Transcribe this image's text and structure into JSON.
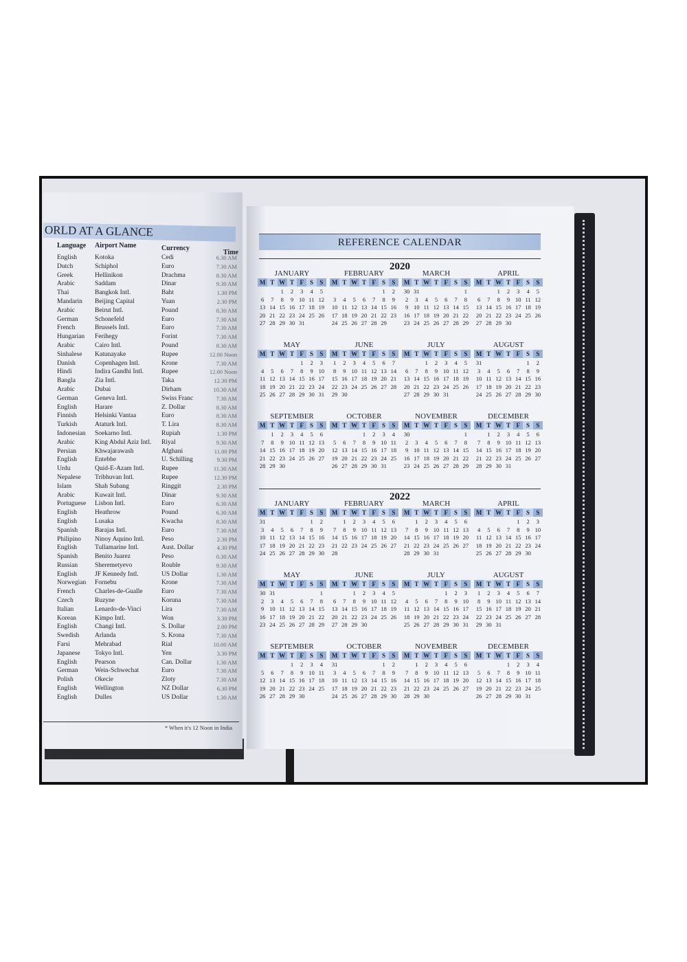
{
  "left_page": {
    "title": "ORLD AT A GLANCE",
    "headers": [
      "Language",
      "Airport Name",
      "Currency",
      "Time"
    ],
    "rows": [
      [
        "English",
        "Kotoka",
        "Cedi",
        "6.30 AM"
      ],
      [
        "Dutch",
        "Schiphol",
        "Euro",
        "7.30 AM"
      ],
      [
        "Greek",
        "Hellinikon",
        "Drachma",
        "8.30 AM"
      ],
      [
        "Arabic",
        "Saddam",
        "Dinar",
        "9.30 AM"
      ],
      [
        "Thai",
        "Bangkok Intl.",
        "Baht",
        "1.30 PM"
      ],
      [
        "Mandarin",
        "Beijing Capital",
        "Yuan",
        "2.30 PM"
      ],
      [
        "Arabic",
        "Beirut Intl.",
        "Pound",
        "8.30 AM"
      ],
      [
        "German",
        "Schonefeld",
        "Euro",
        "7.30 AM"
      ],
      [
        "French",
        "Brussels Intl.",
        "Euro",
        "7.30 AM"
      ],
      [
        "Hungarian",
        "Ferihegy",
        "Forint",
        "7.30 AM"
      ],
      [
        "Arabic",
        "Cairo Intl.",
        "Pound",
        "8.30 AM"
      ],
      [
        "Sinhalese",
        "Katunayake",
        "Rupee",
        "12.00 Noon"
      ],
      [
        "Danish",
        "Copenhagen Intl.",
        "Krone",
        "7.30 AM"
      ],
      [
        "Hindi",
        "Indira Gandhi Intl.",
        "Rupee",
        "12.00 Noon"
      ],
      [
        "Bangla",
        "Zia Intl.",
        "Taka",
        "12.30 PM"
      ],
      [
        "Arabic",
        "Dubai",
        "Dirham",
        "10.30 AM"
      ],
      [
        "German",
        "Geneva Intl.",
        "Swiss Franc",
        "7.30 AM"
      ],
      [
        "English",
        "Harare",
        "Z. Dollar",
        "8.30 AM"
      ],
      [
        "Finnish",
        "Helsinki Vantaa",
        "Euro",
        "8.30 AM"
      ],
      [
        "Turkish",
        "Ataturk Intl.",
        "T. Lira",
        "8.30 AM"
      ],
      [
        "Indonesian",
        "Soekarno Intl.",
        "Rupiah",
        "1.30 PM"
      ],
      [
        "Arabic",
        "King Abdul Aziz Intl.",
        "Riyal",
        "9.30 AM"
      ],
      [
        "Persian",
        "Khwajarawash",
        "Afghani",
        "11.00 PM"
      ],
      [
        "English",
        "Entebbe",
        "U. Schilling",
        "9.30 PM"
      ],
      [
        "Urdu",
        "Quid-E-Azam Intl.",
        "Rupee",
        "11.30 AM"
      ],
      [
        "Nepalese",
        "Tribhuvan Intl.",
        "Rupee",
        "12.30 PM"
      ],
      [
        "Islam",
        "Shah Subang",
        "Ringgit",
        "2.30 PM"
      ],
      [
        "Arabic",
        "Kuwait Intl.",
        "Dinar",
        "9.30 AM"
      ],
      [
        "Portuguese",
        "Lisbon Intl.",
        "Euro",
        "6.30 AM"
      ],
      [
        "English",
        "Heathrow",
        "Pound",
        "6.30 AM"
      ],
      [
        "English",
        "Lusaka",
        "Kwacha",
        "8.30 AM"
      ],
      [
        "Spanish",
        "Barajas Intl.",
        "Euro",
        "7.30 AM"
      ],
      [
        "Philipino",
        "Ninoy Aquino Intl.",
        "Peso",
        "2.30 PM"
      ],
      [
        "English",
        "Tullamarine Intl.",
        "Aust. Dollar",
        "4.30 PM"
      ],
      [
        "Spanish",
        "Benito Juarez",
        "Peso",
        "0.30 AM"
      ],
      [
        "Russian",
        "Sheremetyevo",
        "Rouble",
        "9.30 AM"
      ],
      [
        "English",
        "JF Kennedy Intl.",
        "US Dollar",
        "1.30 AM"
      ],
      [
        "Norwegian",
        "Fornebu",
        "Krone",
        "7.30 AM"
      ],
      [
        "French",
        "Charles-de-Gualle",
        "Euro",
        "7.30 AM"
      ],
      [
        "Czech",
        "Ruzyne",
        "Koruna",
        "7.30 AM"
      ],
      [
        "Italian",
        "Lenardo-de-Vinci",
        "Lira",
        "7.30 AM"
      ],
      [
        "Korean",
        "Kimpo Intl.",
        "Won",
        "3.30 PM"
      ],
      [
        "English",
        "Changi Intl.",
        "S. Dollar",
        "2.00 PM"
      ],
      [
        "Swedish",
        "Arlanda",
        "S. Krona",
        "7.30 AM"
      ],
      [
        "Farsi",
        "Mehrabad",
        "Rial",
        "10.00 AM"
      ],
      [
        "Japanese",
        "Tokyo Intl.",
        "Yen",
        "3.30 PM"
      ],
      [
        "English",
        "Pearson",
        "Can. Dollar",
        "1.30 AM"
      ],
      [
        "German",
        "Wein-Schwechat",
        "Euro",
        "7.30 AM"
      ],
      [
        "Polish",
        "Okecie",
        "Zloty",
        "7.30 AM"
      ],
      [
        "English",
        "Wellington",
        "NZ Dollar",
        "6.30 PM"
      ],
      [
        "English",
        "Dulles",
        "US Dollar",
        "1.30 AM"
      ]
    ],
    "footnote": "* When it's 12 Noon in India"
  },
  "right_page": {
    "title": "REFERENCE CALENDAR",
    "weekdays": [
      "M",
      "T",
      "W",
      "T",
      "F",
      "S",
      "S"
    ],
    "months": [
      "JANUARY",
      "FEBRUARY",
      "MARCH",
      "APRIL",
      "MAY",
      "JUNE",
      "JULY",
      "AUGUST",
      "SEPTEMBER",
      "OCTOBER",
      "NOVEMBER",
      "DECEMBER"
    ],
    "years": [
      "2020",
      "2022"
    ]
  },
  "colors": {
    "header_blue": "#a7bcdd",
    "weekday_blue": "#9bb2d9",
    "cover": "#1d1f24"
  }
}
